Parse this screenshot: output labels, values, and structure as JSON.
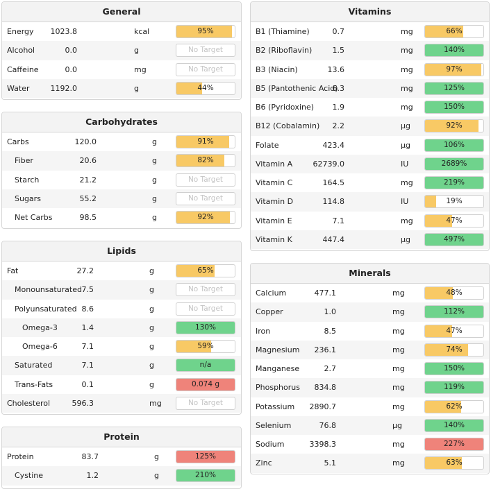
{
  "colors": {
    "yellow": "#f8c965",
    "green": "#6fd38c",
    "red": "#ef837a",
    "header_bg": "#f3f3f3"
  },
  "panels": [
    {
      "id": "general",
      "title": "General",
      "rows": [
        {
          "name": "Energy",
          "value": "1023.8",
          "unit": "kcal",
          "bar": "95%",
          "pct": 95,
          "color": "yellow"
        },
        {
          "name": "Alcohol",
          "value": "0.0",
          "unit": "g",
          "bar": "No Target",
          "pct": 0,
          "color": "none"
        },
        {
          "name": "Caffeine",
          "value": "0.0",
          "unit": "mg",
          "bar": "No Target",
          "pct": 0,
          "color": "none"
        },
        {
          "name": "Water",
          "value": "1192.0",
          "unit": "g",
          "bar": "44%",
          "pct": 44,
          "color": "yellow"
        }
      ]
    },
    {
      "id": "carbohydrates",
      "title": "Carbohydrates",
      "rows": [
        {
          "name": "Carbs",
          "value": "120.0",
          "unit": "g",
          "bar": "91%",
          "pct": 91,
          "color": "yellow",
          "indent": 0
        },
        {
          "name": "Fiber",
          "value": "20.6",
          "unit": "g",
          "bar": "82%",
          "pct": 82,
          "color": "yellow",
          "indent": 1
        },
        {
          "name": "Starch",
          "value": "21.2",
          "unit": "g",
          "bar": "No Target",
          "pct": 0,
          "color": "none",
          "indent": 1
        },
        {
          "name": "Sugars",
          "value": "55.2",
          "unit": "g",
          "bar": "No Target",
          "pct": 0,
          "color": "none",
          "indent": 1
        },
        {
          "name": "Net Carbs",
          "value": "98.5",
          "unit": "g",
          "bar": "92%",
          "pct": 92,
          "color": "yellow",
          "indent": 1
        }
      ]
    },
    {
      "id": "lipids",
      "title": "Lipids",
      "rows": [
        {
          "name": "Fat",
          "value": "27.2",
          "unit": "g",
          "bar": "65%",
          "pct": 65,
          "color": "yellow",
          "indent": 0
        },
        {
          "name": "Monounsaturated",
          "value": "7.5",
          "unit": "g",
          "bar": "No Target",
          "pct": 0,
          "color": "none",
          "indent": 1
        },
        {
          "name": "Polyunsaturated",
          "value": "8.6",
          "unit": "g",
          "bar": "No Target",
          "pct": 0,
          "color": "none",
          "indent": 1
        },
        {
          "name": "Omega-3",
          "value": "1.4",
          "unit": "g",
          "bar": "130%",
          "pct": 100,
          "color": "green",
          "indent": 2
        },
        {
          "name": "Omega-6",
          "value": "7.1",
          "unit": "g",
          "bar": "59%",
          "pct": 59,
          "color": "yellow",
          "indent": 2
        },
        {
          "name": "Saturated",
          "value": "7.1",
          "unit": "g",
          "bar": "n/a",
          "pct": 100,
          "color": "green",
          "indent": 1
        },
        {
          "name": "Trans-Fats",
          "value": "0.1",
          "unit": "g",
          "bar": "0.074 g",
          "pct": 100,
          "color": "red",
          "indent": 1
        },
        {
          "name": "Cholesterol",
          "value": "596.3",
          "unit": "mg",
          "bar": "No Target",
          "pct": 0,
          "color": "none",
          "indent": 0
        }
      ]
    },
    {
      "id": "protein",
      "title": "Protein",
      "rows": [
        {
          "name": "Protein",
          "value": "83.7",
          "unit": "g",
          "bar": "125%",
          "pct": 100,
          "color": "red",
          "indent": 0
        },
        {
          "name": "Cystine",
          "value": "1.2",
          "unit": "g",
          "bar": "210%",
          "pct": 100,
          "color": "green",
          "indent": 1
        }
      ]
    },
    {
      "id": "vitamins",
      "title": "Vitamins",
      "rows": [
        {
          "name": "B1 (Thiamine)",
          "value": "0.7",
          "unit": "mg",
          "bar": "66%",
          "pct": 66,
          "color": "yellow"
        },
        {
          "name": "B2 (Riboflavin)",
          "value": "1.5",
          "unit": "mg",
          "bar": "140%",
          "pct": 100,
          "color": "green"
        },
        {
          "name": "B3 (Niacin)",
          "value": "13.6",
          "unit": "mg",
          "bar": "97%",
          "pct": 97,
          "color": "yellow"
        },
        {
          "name": "B5 (Pantothenic Acid)",
          "value": "6.3",
          "unit": "mg",
          "bar": "125%",
          "pct": 100,
          "color": "green"
        },
        {
          "name": "B6 (Pyridoxine)",
          "value": "1.9",
          "unit": "mg",
          "bar": "150%",
          "pct": 100,
          "color": "green"
        },
        {
          "name": "B12 (Cobalamin)",
          "value": "2.2",
          "unit": "µg",
          "bar": "92%",
          "pct": 92,
          "color": "yellow"
        },
        {
          "name": "Folate",
          "value": "423.4",
          "unit": "µg",
          "bar": "106%",
          "pct": 100,
          "color": "green"
        },
        {
          "name": "Vitamin A",
          "value": "62739.0",
          "unit": "IU",
          "bar": "2689%",
          "pct": 100,
          "color": "green"
        },
        {
          "name": "Vitamin C",
          "value": "164.5",
          "unit": "mg",
          "bar": "219%",
          "pct": 100,
          "color": "green"
        },
        {
          "name": "Vitamin D",
          "value": "114.8",
          "unit": "IU",
          "bar": "19%",
          "pct": 19,
          "color": "yellow"
        },
        {
          "name": "Vitamin E",
          "value": "7.1",
          "unit": "mg",
          "bar": "47%",
          "pct": 47,
          "color": "yellow"
        },
        {
          "name": "Vitamin K",
          "value": "447.4",
          "unit": "µg",
          "bar": "497%",
          "pct": 100,
          "color": "green"
        }
      ]
    },
    {
      "id": "minerals",
      "title": "Minerals",
      "rows": [
        {
          "name": "Calcium",
          "value": "477.1",
          "unit": "mg",
          "bar": "48%",
          "pct": 48,
          "color": "yellow"
        },
        {
          "name": "Copper",
          "value": "1.0",
          "unit": "mg",
          "bar": "112%",
          "pct": 100,
          "color": "green"
        },
        {
          "name": "Iron",
          "value": "8.5",
          "unit": "mg",
          "bar": "47%",
          "pct": 47,
          "color": "yellow"
        },
        {
          "name": "Magnesium",
          "value": "236.1",
          "unit": "mg",
          "bar": "74%",
          "pct": 74,
          "color": "yellow"
        },
        {
          "name": "Manganese",
          "value": "2.7",
          "unit": "mg",
          "bar": "150%",
          "pct": 100,
          "color": "green"
        },
        {
          "name": "Phosphorus",
          "value": "834.8",
          "unit": "mg",
          "bar": "119%",
          "pct": 100,
          "color": "green"
        },
        {
          "name": "Potassium",
          "value": "2890.7",
          "unit": "mg",
          "bar": "62%",
          "pct": 62,
          "color": "yellow"
        },
        {
          "name": "Selenium",
          "value": "76.8",
          "unit": "µg",
          "bar": "140%",
          "pct": 100,
          "color": "green"
        },
        {
          "name": "Sodium",
          "value": "3398.3",
          "unit": "mg",
          "bar": "227%",
          "pct": 100,
          "color": "red"
        },
        {
          "name": "Zinc",
          "value": "5.1",
          "unit": "mg",
          "bar": "63%",
          "pct": 63,
          "color": "yellow"
        }
      ]
    }
  ]
}
